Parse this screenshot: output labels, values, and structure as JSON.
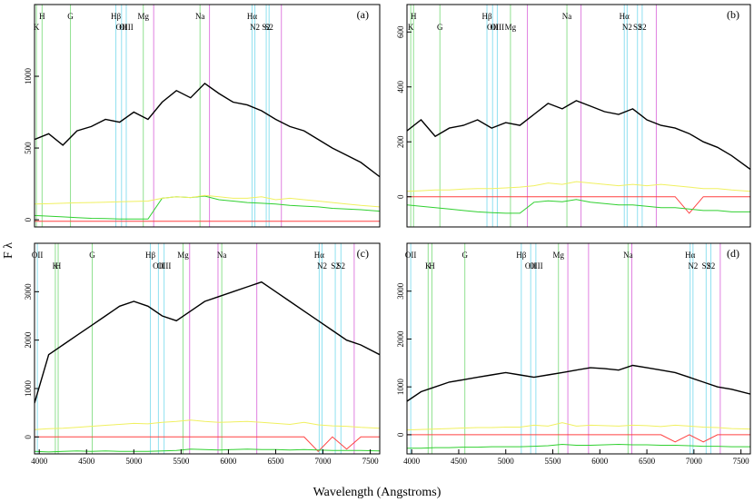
{
  "axis_labels": {
    "x": "Wavelength (Angstroms)",
    "y": "F λ"
  },
  "chart_data": [
    {
      "type": "line",
      "panel_label": "(a)",
      "x": [
        3950,
        4100,
        4250,
        4400,
        4550,
        4700,
        4850,
        5000,
        5150,
        5300,
        5450,
        5600,
        5750,
        5900,
        6050,
        6200,
        6350,
        6500,
        6650,
        6800,
        6950,
        7100,
        7250,
        7400,
        7600
      ],
      "xlim": [
        3950,
        7600
      ],
      "ylim": [
        -50,
        1500
      ],
      "yticks": [
        0,
        500,
        1000
      ],
      "series": [
        {
          "color": "#000000",
          "values": [
            560,
            600,
            520,
            620,
            650,
            700,
            680,
            750,
            700,
            820,
            900,
            850,
            950,
            880,
            820,
            800,
            760,
            700,
            650,
            620,
            560,
            500,
            450,
            400,
            300
          ]
        },
        {
          "color": "#f0f060",
          "values": [
            110,
            112,
            115,
            118,
            120,
            122,
            125,
            128,
            130,
            150,
            160,
            155,
            170,
            160,
            150,
            150,
            160,
            140,
            150,
            140,
            130,
            120,
            110,
            100,
            90
          ]
        },
        {
          "color": "#30d030",
          "values": [
            30,
            25,
            20,
            15,
            10,
            8,
            5,
            5,
            5,
            150,
            160,
            155,
            165,
            140,
            130,
            120,
            115,
            110,
            100,
            95,
            90,
            80,
            75,
            70,
            60
          ]
        },
        {
          "color": "#ff4040",
          "values": [
            -10,
            -10,
            -10,
            -10,
            -10,
            -10,
            -10,
            -10,
            -10,
            -10,
            -10,
            -10,
            -10,
            -10,
            -10,
            -10,
            -10,
            -10,
            -10,
            -10,
            -10,
            -10,
            -10,
            -10,
            -10
          ]
        }
      ],
      "lines": [
        {
          "label": "H",
          "x": 4030,
          "color": "#90e090"
        },
        {
          "label": "G",
          "x": 4330,
          "color": "#90e090"
        },
        {
          "label": "Hβ",
          "x": 4810,
          "color": "#90e0f0"
        },
        {
          "label": "OII",
          "x": 4870,
          "color": "#90e0f0"
        },
        {
          "label": "Na",
          "x": 5700,
          "color": "#90e090"
        },
        {
          "label": "Hα",
          "x": 6250,
          "color": "#90e0f0"
        },
        {
          "label": "S2",
          "x": 6400,
          "color": "#90e0f0"
        },
        {
          "label": "K",
          "x": 3970,
          "color": "#90e090"
        },
        {
          "label": "OIII",
          "x": 4920,
          "color": "#90e0f0"
        },
        {
          "label": "Mg",
          "x": 5100,
          "color": "#90e090"
        },
        {
          "label": "N2",
          "x": 6280,
          "color": "#90e0f0"
        },
        {
          "label": "S2",
          "x": 6430,
          "color": "#90e0f0"
        },
        {
          "label": null,
          "x": 5210,
          "color": "#e080e0"
        },
        {
          "label": null,
          "x": 5800,
          "color": "#e080e0"
        },
        {
          "label": null,
          "x": 6560,
          "color": "#e080e0"
        }
      ]
    },
    {
      "type": "line",
      "panel_label": "(b)",
      "x": [
        3950,
        4100,
        4250,
        4400,
        4550,
        4700,
        4850,
        5000,
        5150,
        5300,
        5450,
        5600,
        5750,
        5900,
        6050,
        6200,
        6350,
        6500,
        6650,
        6800,
        6950,
        7100,
        7250,
        7400,
        7600
      ],
      "xlim": [
        3950,
        7600
      ],
      "ylim": [
        -110,
        700
      ],
      "yticks": [
        0,
        200,
        400,
        600
      ],
      "series": [
        {
          "color": "#000000",
          "values": [
            240,
            280,
            220,
            250,
            260,
            280,
            250,
            270,
            260,
            300,
            340,
            320,
            350,
            330,
            310,
            300,
            320,
            280,
            260,
            250,
            230,
            200,
            180,
            150,
            100
          ]
        },
        {
          "color": "#f0f060",
          "values": [
            20,
            22,
            25,
            25,
            28,
            30,
            30,
            32,
            35,
            40,
            50,
            45,
            55,
            50,
            45,
            40,
            45,
            40,
            45,
            40,
            35,
            30,
            30,
            25,
            20
          ]
        },
        {
          "color": "#30d030",
          "values": [
            -30,
            -35,
            -40,
            -45,
            -50,
            -55,
            -58,
            -60,
            -60,
            -20,
            -15,
            -18,
            -10,
            -20,
            -25,
            -30,
            -30,
            -35,
            -40,
            -40,
            -45,
            -50,
            -50,
            -55,
            -55
          ]
        },
        {
          "color": "#ff4040",
          "values": [
            0,
            0,
            0,
            0,
            0,
            0,
            0,
            0,
            0,
            0,
            0,
            0,
            0,
            0,
            0,
            0,
            0,
            0,
            0,
            0,
            -60,
            0,
            0,
            0,
            0
          ]
        }
      ],
      "lines": [
        {
          "label": "H",
          "x": 4020,
          "color": "#90e090"
        },
        {
          "label": "G",
          "x": 4300,
          "color": "#90e090"
        },
        {
          "label": "Hβ",
          "x": 4800,
          "color": "#90e0f0"
        },
        {
          "label": "OII",
          "x": 4860,
          "color": "#90e0f0"
        },
        {
          "label": "Na",
          "x": 5650,
          "color": "#90e090"
        },
        {
          "label": "Hα",
          "x": 6260,
          "color": "#90e0f0"
        },
        {
          "label": "S2",
          "x": 6400,
          "color": "#90e0f0"
        },
        {
          "label": "K",
          "x": 3990,
          "color": "#90e090"
        },
        {
          "label": "OIII",
          "x": 4910,
          "color": "#90e0f0"
        },
        {
          "label": "Mg",
          "x": 5050,
          "color": "#90e090"
        },
        {
          "label": "N2",
          "x": 6290,
          "color": "#90e0f0"
        },
        {
          "label": "S2",
          "x": 6450,
          "color": "#90e0f0"
        },
        {
          "label": null,
          "x": 5230,
          "color": "#e080e0"
        },
        {
          "label": null,
          "x": 5800,
          "color": "#e080e0"
        },
        {
          "label": null,
          "x": 6600,
          "color": "#e080e0"
        }
      ]
    },
    {
      "type": "line",
      "panel_label": "(c)",
      "x": [
        3950,
        4100,
        4250,
        4400,
        4550,
        4700,
        4850,
        5000,
        5150,
        5300,
        5450,
        5600,
        5750,
        5900,
        6050,
        6200,
        6350,
        6500,
        6650,
        6800,
        6950,
        7100,
        7250,
        7400,
        7600
      ],
      "xlim": [
        3950,
        7600
      ],
      "ylim": [
        -350,
        4000
      ],
      "yticks": [
        0,
        1000,
        2000,
        3000
      ],
      "xticks": [
        4000,
        4500,
        5000,
        5500,
        6000,
        6500,
        7000,
        7500
      ],
      "series": [
        {
          "color": "#000000",
          "values": [
            700,
            1700,
            1900,
            2100,
            2300,
            2500,
            2700,
            2800,
            2700,
            2500,
            2400,
            2600,
            2800,
            2900,
            3000,
            3100,
            3200,
            3000,
            2800,
            2600,
            2400,
            2200,
            2000,
            1900,
            1700
          ]
        },
        {
          "color": "#f0f060",
          "values": [
            150,
            170,
            180,
            200,
            220,
            240,
            260,
            280,
            270,
            300,
            320,
            350,
            320,
            300,
            310,
            320,
            300,
            280,
            260,
            300,
            250,
            230,
            220,
            200,
            180
          ]
        },
        {
          "color": "#30d030",
          "values": [
            -300,
            -310,
            -300,
            -290,
            -300,
            -290,
            -300,
            -300,
            -300,
            -290,
            -280,
            -250,
            -260,
            -270,
            -260,
            -250,
            -260,
            -260,
            -270,
            -260,
            -270,
            -280,
            -280,
            -280,
            -290
          ]
        },
        {
          "color": "#ff4040",
          "values": [
            0,
            0,
            0,
            0,
            0,
            0,
            0,
            0,
            0,
            0,
            0,
            0,
            0,
            0,
            0,
            0,
            0,
            0,
            0,
            0,
            -300,
            0,
            -250,
            0,
            0
          ]
        }
      ],
      "lines": [
        {
          "label": "OII",
          "x": 3980,
          "color": "#90e0f0"
        },
        {
          "label": "H",
          "x": 4200,
          "color": "#90e090"
        },
        {
          "label": "G",
          "x": 4560,
          "color": "#90e090"
        },
        {
          "label": "Hβ",
          "x": 5175,
          "color": "#90e0f0"
        },
        {
          "label": "OII",
          "x": 5260,
          "color": "#90e0f0"
        },
        {
          "label": "Na",
          "x": 5930,
          "color": "#90e090"
        },
        {
          "label": "Hα",
          "x": 6960,
          "color": "#90e0f0"
        },
        {
          "label": "S2",
          "x": 7130,
          "color": "#90e0f0"
        },
        {
          "label": "K",
          "x": 4170,
          "color": "#90e090"
        },
        {
          "label": "OIII",
          "x": 5320,
          "color": "#90e0f0"
        },
        {
          "label": "Mg",
          "x": 5520,
          "color": "#90e090"
        },
        {
          "label": "N2",
          "x": 6990,
          "color": "#90e0f0"
        },
        {
          "label": "S2",
          "x": 7190,
          "color": "#90e0f0"
        },
        {
          "label": null,
          "x": 5590,
          "color": "#e080e0"
        },
        {
          "label": null,
          "x": 5890,
          "color": "#e080e0"
        },
        {
          "label": null,
          "x": 6300,
          "color": "#e080e0"
        },
        {
          "label": null,
          "x": 7330,
          "color": "#e080e0"
        }
      ]
    },
    {
      "type": "line",
      "panel_label": "(d)",
      "x": [
        3950,
        4100,
        4250,
        4400,
        4550,
        4700,
        4850,
        5000,
        5150,
        5300,
        5450,
        5600,
        5750,
        5900,
        6050,
        6200,
        6350,
        6500,
        6650,
        6800,
        6950,
        7100,
        7250,
        7400,
        7600
      ],
      "xlim": [
        3950,
        7600
      ],
      "ylim": [
        -400,
        4000
      ],
      "yticks": [
        0,
        1000,
        2000,
        3000
      ],
      "xticks": [
        4000,
        4500,
        5000,
        5500,
        6000,
        6500,
        7000,
        7500
      ],
      "series": [
        {
          "color": "#000000",
          "values": [
            700,
            900,
            1000,
            1100,
            1150,
            1200,
            1250,
            1300,
            1250,
            1200,
            1250,
            1300,
            1350,
            1400,
            1380,
            1350,
            1450,
            1400,
            1350,
            1300,
            1200,
            1100,
            1000,
            950,
            850
          ]
        },
        {
          "color": "#f0f060",
          "values": [
            100,
            110,
            120,
            130,
            140,
            150,
            150,
            160,
            160,
            200,
            180,
            250,
            180,
            200,
            190,
            180,
            200,
            190,
            170,
            200,
            180,
            160,
            150,
            130,
            120
          ]
        },
        {
          "color": "#30d030",
          "values": [
            -280,
            -280,
            -270,
            -270,
            -260,
            -260,
            -250,
            -250,
            -250,
            -240,
            -230,
            -200,
            -220,
            -220,
            -210,
            -200,
            -210,
            -210,
            -220,
            -220,
            -230,
            -240,
            -240,
            -250,
            -250
          ]
        },
        {
          "color": "#ff4040",
          "values": [
            0,
            0,
            0,
            0,
            0,
            0,
            0,
            0,
            0,
            0,
            0,
            0,
            0,
            0,
            0,
            0,
            0,
            0,
            0,
            -150,
            0,
            -150,
            0,
            0,
            0
          ]
        }
      ],
      "lines": [
        {
          "label": "OII",
          "x": 3990,
          "color": "#90e0f0"
        },
        {
          "label": "H",
          "x": 4215,
          "color": "#90e090"
        },
        {
          "label": "G",
          "x": 4565,
          "color": "#90e090"
        },
        {
          "label": "Hβ",
          "x": 5165,
          "color": "#90e0f0"
        },
        {
          "label": "OII",
          "x": 5265,
          "color": "#90e0f0"
        },
        {
          "label": "Na",
          "x": 6300,
          "color": "#90e090"
        },
        {
          "label": "Hα",
          "x": 6960,
          "color": "#90e0f0"
        },
        {
          "label": "S2",
          "x": 7130,
          "color": "#90e0f0"
        },
        {
          "label": "K",
          "x": 4175,
          "color": "#90e090"
        },
        {
          "label": "OIII",
          "x": 5320,
          "color": "#90e0f0"
        },
        {
          "label": "Mg",
          "x": 5560,
          "color": "#90e090"
        },
        {
          "label": "N2",
          "x": 6990,
          "color": "#90e0f0"
        },
        {
          "label": "S2",
          "x": 7180,
          "color": "#90e0f0"
        },
        {
          "label": null,
          "x": 5660,
          "color": "#e080e0"
        },
        {
          "label": null,
          "x": 5880,
          "color": "#e080e0"
        },
        {
          "label": null,
          "x": 6340,
          "color": "#e080e0"
        },
        {
          "label": null,
          "x": 7280,
          "color": "#e080e0"
        }
      ]
    }
  ]
}
